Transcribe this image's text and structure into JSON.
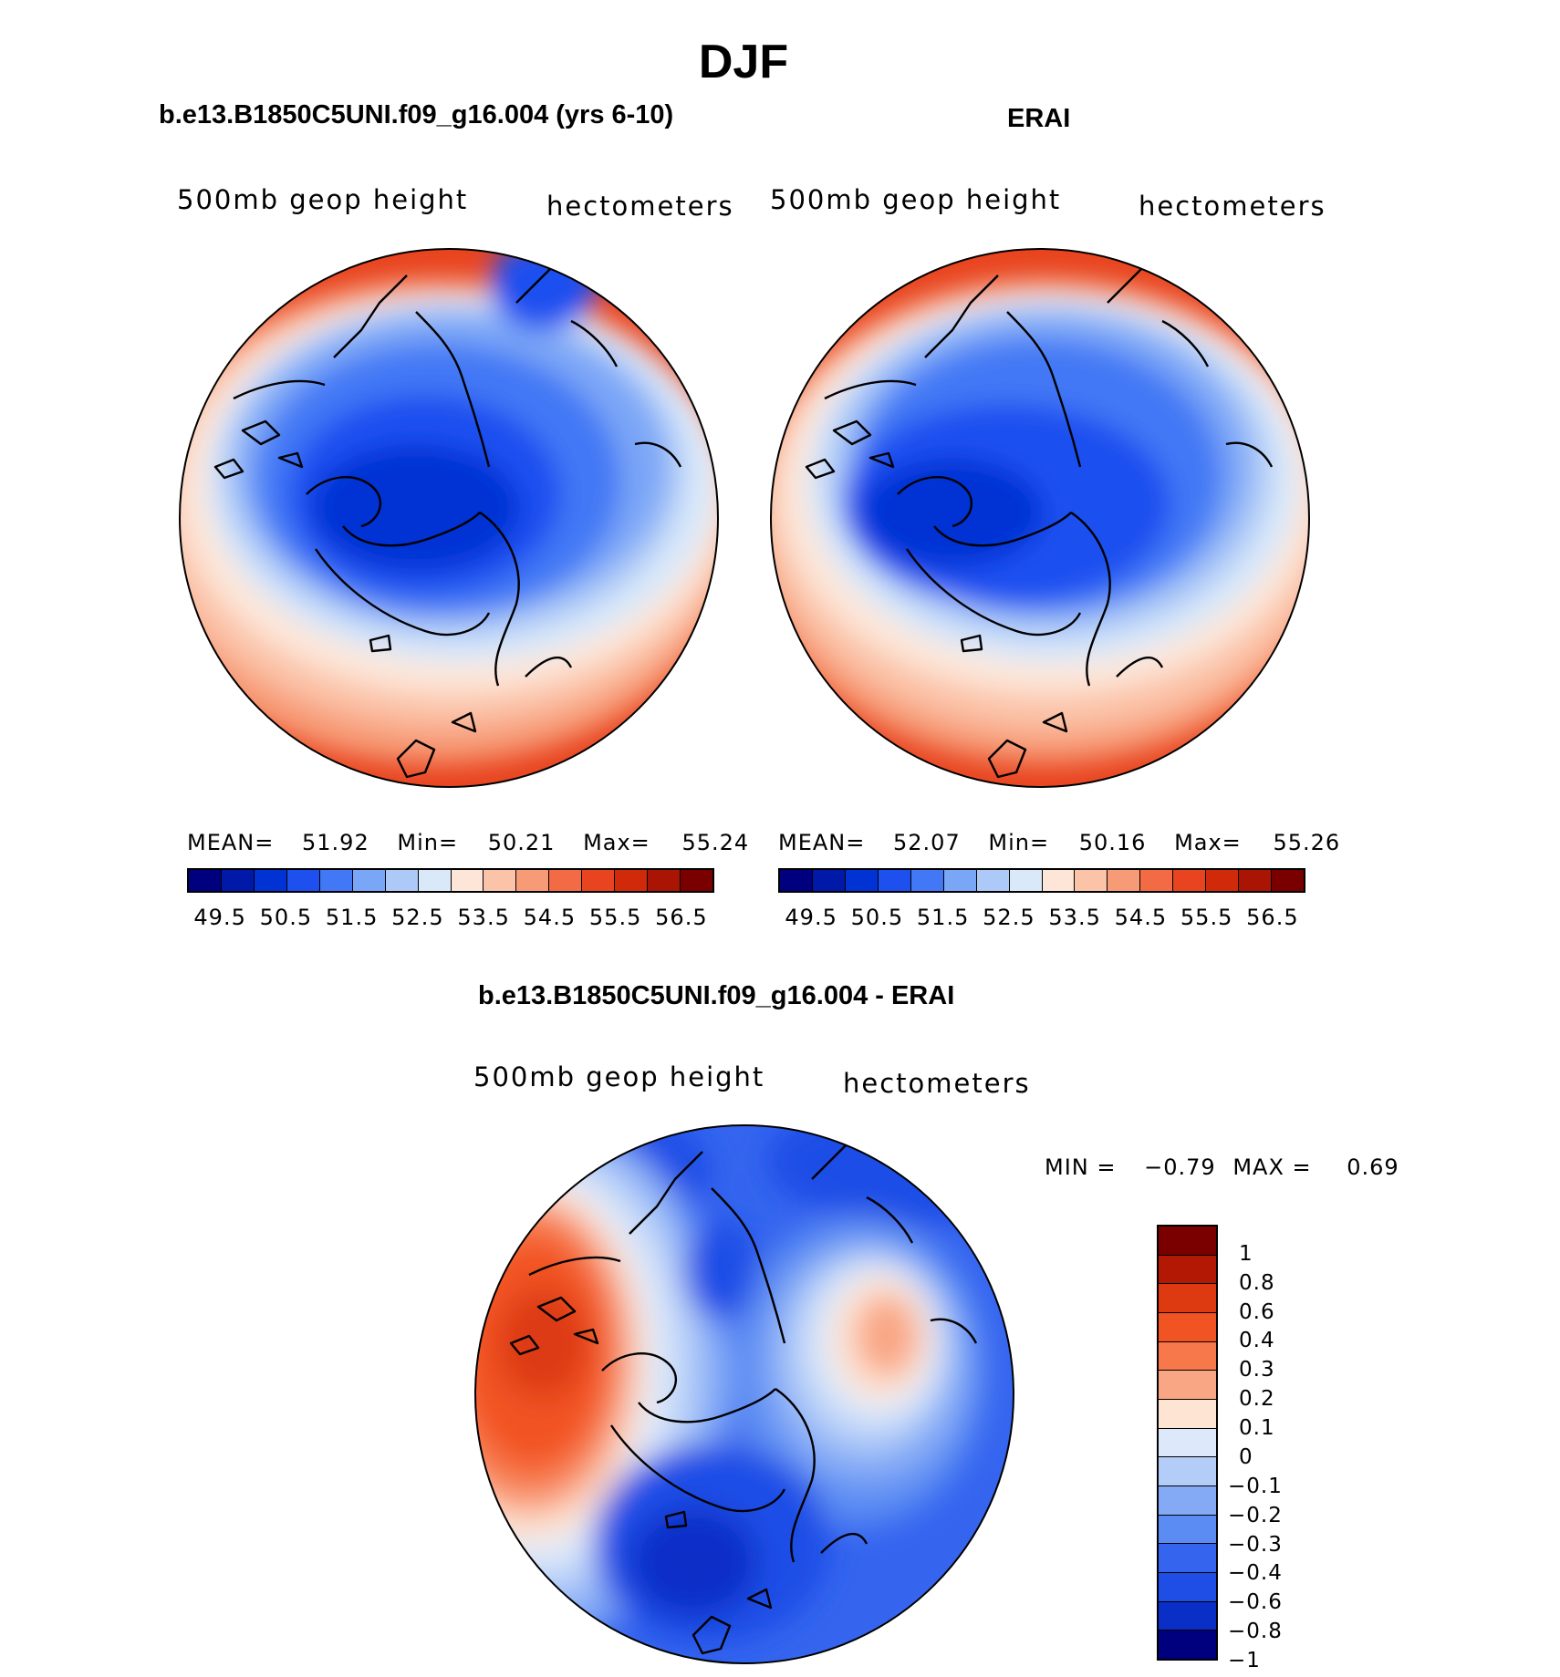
{
  "page_title": "DJF",
  "panels": {
    "model": {
      "title": "b.e13.B1850C5UNI.f09_g16.004 (yrs 6-10)",
      "variable": "500mb geop height",
      "units": "hectometers",
      "stats": {
        "mean_label": "MEAN=",
        "mean": "51.92",
        "min_label": "Min=",
        "min": "50.21",
        "max_label": "Max=",
        "max": "55.24"
      }
    },
    "obs": {
      "title": "ERAI",
      "variable": "500mb geop height",
      "units": "hectometers",
      "stats": {
        "mean_label": "MEAN=",
        "mean": "52.07",
        "min_label": "Min=",
        "min": "50.16",
        "max_label": "Max=",
        "max": "55.26"
      }
    },
    "diff": {
      "title": "b.e13.B1850C5UNI.f09_g16.004 - ERAI",
      "variable": "500mb geop height",
      "units": "hectometers",
      "stats": {
        "min_label": "MIN =",
        "min": "−0.79",
        "max_label": "MAX =",
        "max": "0.69"
      }
    }
  },
  "height_colorbar": {
    "colors": [
      "#00007f",
      "#0019a8",
      "#0032d4",
      "#1e50f0",
      "#4278f5",
      "#7aa6f7",
      "#adc9f7",
      "#d9e9fa",
      "#fde6d8",
      "#fbc3a8",
      "#f79b77",
      "#f26b45",
      "#e8441f",
      "#d12a0b",
      "#aa1503",
      "#7a0000"
    ],
    "tick_labels": [
      "49.5",
      "50.5",
      "51.5",
      "52.5",
      "53.5",
      "54.5",
      "55.5",
      "56.5"
    ]
  },
  "diff_colorbar": {
    "colors": [
      "#7a0000",
      "#b21803",
      "#dd3a12",
      "#f25322",
      "#f7784a",
      "#f9a684",
      "#fde4d3",
      "#dde9fa",
      "#b4cdf8",
      "#84aaf6",
      "#5b8cf3",
      "#3565ef",
      "#1f4ee6",
      "#0a2fc7",
      "#00007f"
    ],
    "tick_labels": [
      "1",
      "0.8",
      "0.6",
      "0.4",
      "0.3",
      "0.2",
      "0.1",
      "0",
      "−0.1",
      "−0.2",
      "−0.3",
      "−0.4",
      "−0.6",
      "−0.8",
      "−1"
    ]
  }
}
